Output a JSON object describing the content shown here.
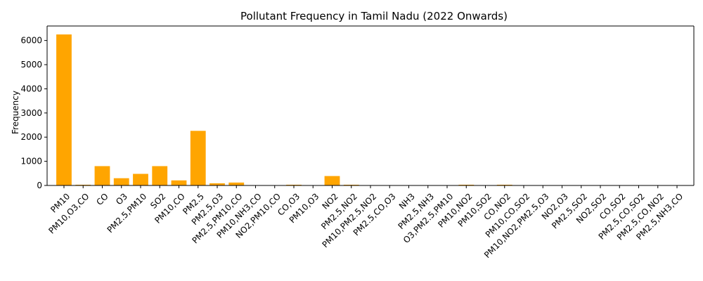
{
  "chart_data": {
    "type": "bar",
    "title": "Pollutant Frequency in Tamil Nadu (2022 Onwards)",
    "xlabel": "",
    "ylabel": "Frequency",
    "ylim": [
      0,
      6600
    ],
    "yticks": [
      0,
      1000,
      2000,
      3000,
      4000,
      5000,
      6000
    ],
    "grid": false,
    "bar_color": "#ffa500",
    "categories": [
      "PM10",
      "PM10,O3,CO",
      "CO",
      "O3",
      "PM2.5,PM10",
      "SO2",
      "PM10,CO",
      "PM2.5",
      "PM2.5,O3",
      "PM2.5,PM10,CO",
      "PM10,NH3,CO",
      "NO2,PM10,CO",
      "CO,O3",
      "PM10,O3",
      "NO2",
      "PM2.5,NO2",
      "PM10,PM2.5,NO2",
      "PM2.5,CO,O3",
      "NH3",
      "PM2.5,NH3",
      "O3,PM2.5,PM10",
      "PM10,NO2",
      "PM10,SO2",
      "CO,NO2",
      "PM10,CO,SO2",
      "PM10,NO2,PM2.5,O3",
      "NO2,O3",
      "PM2.5,SO2",
      "NO2,SO2",
      "CO,SO2",
      "PM2.5,CO,SO2",
      "PM2.5,CO,NO2",
      "PM2.5,NH3,CO"
    ],
    "values": [
      6250,
      30,
      800,
      300,
      480,
      800,
      210,
      2260,
      90,
      120,
      5,
      5,
      30,
      5,
      390,
      30,
      5,
      5,
      5,
      5,
      5,
      30,
      5,
      30,
      5,
      5,
      5,
      5,
      5,
      5,
      5,
      5,
      5
    ]
  }
}
